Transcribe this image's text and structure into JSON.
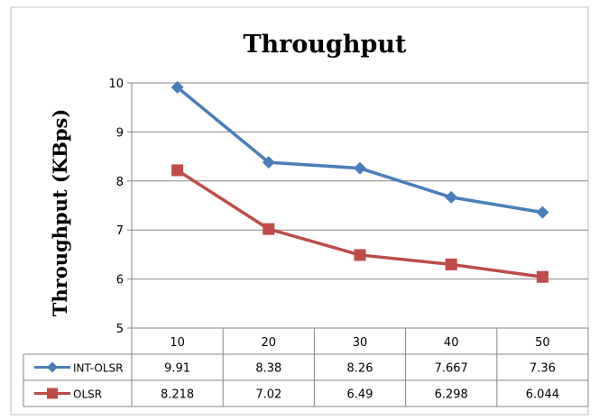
{
  "chart_data": {
    "type": "line",
    "title": "Throughput",
    "xlabel": "",
    "ylabel": "Throughput (KBps)",
    "categories": [
      "10",
      "20",
      "30",
      "40",
      "50"
    ],
    "ylim": [
      5,
      10
    ],
    "yticks": [
      "5",
      "6",
      "7",
      "8",
      "9",
      "10"
    ],
    "grid": "horizontal",
    "legend": "data-table",
    "series": [
      {
        "name": "INT-OLSR",
        "color": "#4a7ebb",
        "marker": "diamond",
        "values": [
          9.91,
          8.38,
          8.26,
          7.667,
          7.36
        ],
        "labels": [
          "9.91",
          "8.38",
          "8.26",
          "7.667",
          "7.36"
        ]
      },
      {
        "name": "OLSR",
        "color": "#be4b48",
        "marker": "square",
        "values": [
          8.218,
          7.02,
          6.49,
          6.298,
          6.044
        ],
        "labels": [
          "8.218",
          "7.02",
          "6.49",
          "6.298",
          "6.044"
        ]
      }
    ]
  }
}
